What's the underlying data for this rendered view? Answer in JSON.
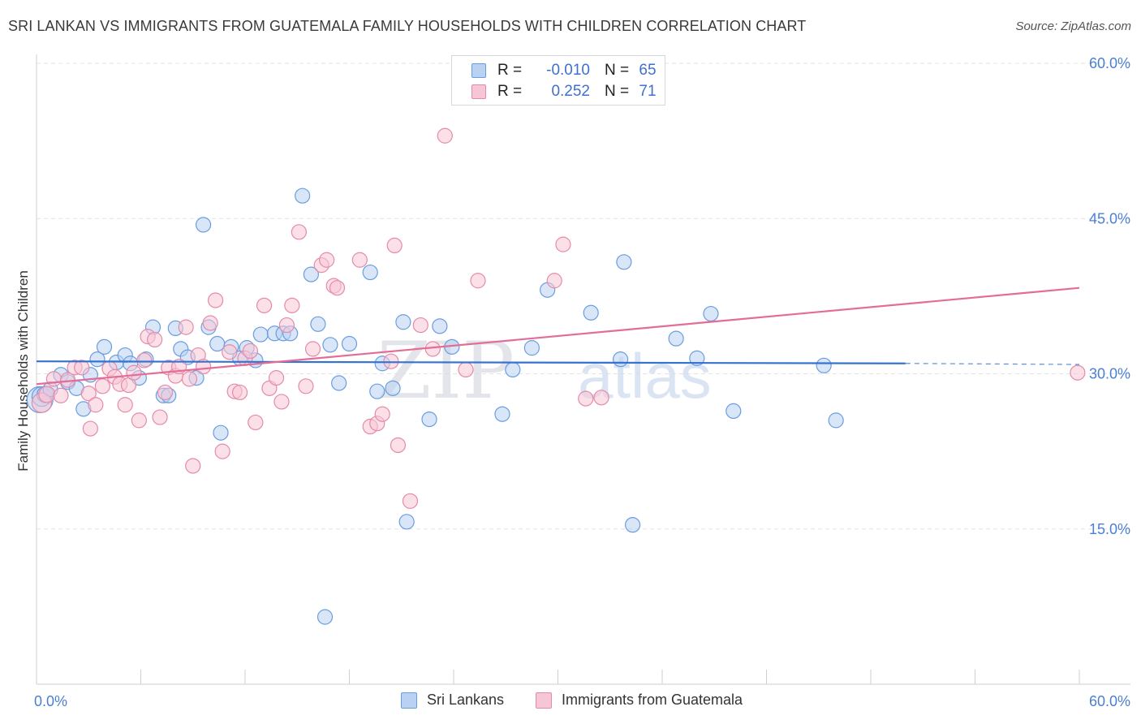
{
  "title": "SRI LANKAN VS IMMIGRANTS FROM GUATEMALA FAMILY HOUSEHOLDS WITH CHILDREN CORRELATION CHART",
  "source": "Source: ZipAtlas.com",
  "watermark": {
    "zip": "ZIP",
    "atlas": "atlas"
  },
  "legend": {
    "rows": [
      {
        "r_label": "R =",
        "r_value": "-0.010",
        "n_label": "N =",
        "n_value": "65"
      },
      {
        "r_label": "R =",
        "r_value": "0.252",
        "n_label": "N =",
        "n_value": "71"
      }
    ]
  },
  "bottom_legend": [
    "Sri Lankans",
    "Immigrants from Guatemala"
  ],
  "colors": {
    "blue_fill": "#b9d2f3",
    "blue_stroke": "#6a9de0",
    "blue_line": "#3673d0",
    "pink_fill": "#f7c6d6",
    "pink_stroke": "#e58aaa",
    "pink_line": "#e36d97",
    "axis_text": "#4a7fd4",
    "grid": "#e3e3e3"
  },
  "chart_data": {
    "type": "scatter",
    "title": "SRI LANKAN VS IMMIGRANTS FROM GUATEMALA FAMILY HOUSEHOLDS WITH CHILDREN CORRELATION CHART",
    "xlabel": "",
    "ylabel": "Family Households with Children",
    "xlim": [
      0,
      60
    ],
    "ylim": [
      0,
      60
    ],
    "x_ticks": [
      {
        "value": 0,
        "label": "0.0%"
      },
      {
        "value": 60,
        "label": "60.0%"
      }
    ],
    "y_ticks": [
      {
        "value": 15,
        "label": "15.0%"
      },
      {
        "value": 30,
        "label": "30.0%"
      },
      {
        "value": 45,
        "label": "45.0%"
      },
      {
        "value": 60,
        "label": "60.0%"
      }
    ],
    "series": [
      {
        "name": "Sri Lankans",
        "color": "blue",
        "trend": {
          "x0": 0,
          "y0": 31.2,
          "x1": 50,
          "y1": 31.0,
          "dashed_to": 60,
          "dashed_y": 30.9
        },
        "points": [
          [
            0.2,
            27.5,
            16
          ],
          [
            0.3,
            27.8,
            12
          ],
          [
            0.5,
            28.0,
            10
          ],
          [
            0.8,
            28.5,
            9
          ],
          [
            1.4,
            29.9,
            9
          ],
          [
            1.8,
            29.2,
            9
          ],
          [
            2.3,
            28.6,
            9
          ],
          [
            2.7,
            26.6,
            9
          ],
          [
            3.1,
            29.9,
            9
          ],
          [
            3.5,
            31.4,
            9
          ],
          [
            3.9,
            32.6,
            9
          ],
          [
            4.6,
            31.1,
            9
          ],
          [
            5.1,
            31.8,
            9
          ],
          [
            5.4,
            31.0,
            9
          ],
          [
            5.9,
            29.6,
            9
          ],
          [
            6.3,
            31.4,
            9
          ],
          [
            6.7,
            34.5,
            9
          ],
          [
            7.3,
            27.9,
            9
          ],
          [
            7.6,
            27.9,
            9
          ],
          [
            8.0,
            34.4,
            9
          ],
          [
            8.3,
            32.4,
            9
          ],
          [
            8.7,
            31.6,
            9
          ],
          [
            9.2,
            29.6,
            9
          ],
          [
            9.6,
            44.4,
            9
          ],
          [
            9.9,
            34.5,
            9
          ],
          [
            10.4,
            32.9,
            9
          ],
          [
            10.6,
            24.3,
            9
          ],
          [
            11.2,
            32.6,
            9
          ],
          [
            11.7,
            31.5,
            9
          ],
          [
            12.1,
            32.5,
            9
          ],
          [
            12.6,
            31.3,
            9
          ],
          [
            12.9,
            33.8,
            9
          ],
          [
            13.7,
            33.9,
            9
          ],
          [
            14.2,
            33.9,
            9
          ],
          [
            14.6,
            33.9,
            9
          ],
          [
            15.3,
            47.2,
            9
          ],
          [
            15.8,
            39.6,
            9
          ],
          [
            16.2,
            34.8,
            9
          ],
          [
            16.6,
            6.5,
            9
          ],
          [
            16.9,
            32.8,
            9
          ],
          [
            17.4,
            29.1,
            9
          ],
          [
            18.0,
            32.9,
            9
          ],
          [
            19.2,
            39.8,
            9
          ],
          [
            19.6,
            28.3,
            9
          ],
          [
            19.9,
            31.0,
            9
          ],
          [
            20.5,
            28.6,
            9
          ],
          [
            21.1,
            35.0,
            9
          ],
          [
            21.3,
            15.7,
            9
          ],
          [
            22.6,
            25.6,
            9
          ],
          [
            23.2,
            34.6,
            9
          ],
          [
            23.9,
            32.6,
            9
          ],
          [
            26.8,
            26.1,
            9
          ],
          [
            27.4,
            30.4,
            9
          ],
          [
            28.5,
            32.5,
            9
          ],
          [
            29.4,
            38.1,
            9
          ],
          [
            31.9,
            35.9,
            9
          ],
          [
            33.6,
            31.4,
            9
          ],
          [
            33.8,
            40.8,
            9
          ],
          [
            34.3,
            15.4,
            9
          ],
          [
            36.8,
            33.4,
            9
          ],
          [
            38.0,
            31.5,
            9
          ],
          [
            38.8,
            35.8,
            9
          ],
          [
            40.1,
            26.4,
            9
          ],
          [
            45.3,
            30.8,
            9
          ],
          [
            46.0,
            25.5,
            9
          ]
        ]
      },
      {
        "name": "Immigrants from Guatemala",
        "color": "pink",
        "trend": {
          "x0": 0,
          "y0": 29.0,
          "x1": 60,
          "y1": 38.3
        },
        "points": [
          [
            0.3,
            27.2,
            12
          ],
          [
            0.6,
            28.0,
            10
          ],
          [
            1.0,
            29.5,
            9
          ],
          [
            1.4,
            27.9,
            9
          ],
          [
            1.8,
            29.4,
            9
          ],
          [
            2.2,
            30.6,
            9
          ],
          [
            2.6,
            30.6,
            9
          ],
          [
            3.0,
            28.1,
            9
          ],
          [
            3.1,
            24.7,
            9
          ],
          [
            3.4,
            27.0,
            9
          ],
          [
            3.8,
            28.8,
            9
          ],
          [
            4.2,
            30.5,
            9
          ],
          [
            4.5,
            29.7,
            9
          ],
          [
            4.8,
            29.0,
            9
          ],
          [
            5.1,
            27.0,
            9
          ],
          [
            5.3,
            28.9,
            9
          ],
          [
            5.6,
            30.1,
            9
          ],
          [
            5.9,
            25.5,
            9
          ],
          [
            6.2,
            31.3,
            9
          ],
          [
            6.4,
            33.6,
            9
          ],
          [
            6.8,
            33.3,
            9
          ],
          [
            7.1,
            25.8,
            9
          ],
          [
            7.4,
            28.2,
            9
          ],
          [
            7.6,
            30.6,
            9
          ],
          [
            8.0,
            29.8,
            9
          ],
          [
            8.2,
            30.7,
            9
          ],
          [
            8.6,
            34.5,
            9
          ],
          [
            8.8,
            29.5,
            9
          ],
          [
            9.0,
            21.1,
            9
          ],
          [
            9.3,
            31.8,
            9
          ],
          [
            9.6,
            30.7,
            9
          ],
          [
            10.0,
            34.9,
            9
          ],
          [
            10.3,
            37.1,
            9
          ],
          [
            10.7,
            22.5,
            9
          ],
          [
            11.1,
            32.1,
            9
          ],
          [
            11.4,
            28.3,
            9
          ],
          [
            11.7,
            28.2,
            9
          ],
          [
            12.0,
            31.5,
            9
          ],
          [
            12.3,
            32.2,
            9
          ],
          [
            12.6,
            25.3,
            9
          ],
          [
            13.1,
            36.6,
            9
          ],
          [
            13.4,
            28.6,
            9
          ],
          [
            13.8,
            29.6,
            9
          ],
          [
            14.1,
            27.3,
            9
          ],
          [
            14.4,
            34.7,
            9
          ],
          [
            14.7,
            36.6,
            9
          ],
          [
            15.1,
            43.7,
            9
          ],
          [
            15.5,
            28.8,
            9
          ],
          [
            15.9,
            32.4,
            9
          ],
          [
            16.4,
            40.5,
            9
          ],
          [
            16.7,
            41.0,
            9
          ],
          [
            17.1,
            38.5,
            9
          ],
          [
            17.3,
            38.3,
            9
          ],
          [
            18.6,
            41.0,
            9
          ],
          [
            19.2,
            24.9,
            9
          ],
          [
            19.6,
            25.2,
            9
          ],
          [
            19.9,
            26.1,
            9
          ],
          [
            20.4,
            31.2,
            9
          ],
          [
            20.6,
            42.4,
            9
          ],
          [
            20.8,
            23.1,
            9
          ],
          [
            21.5,
            17.7,
            9
          ],
          [
            22.1,
            34.7,
            9
          ],
          [
            22.8,
            32.4,
            9
          ],
          [
            23.5,
            53.0,
            9
          ],
          [
            24.7,
            30.4,
            9
          ],
          [
            25.4,
            39.0,
            9
          ],
          [
            29.8,
            39.0,
            9
          ],
          [
            30.3,
            42.5,
            9
          ],
          [
            31.6,
            27.6,
            9
          ],
          [
            32.5,
            27.7,
            9
          ],
          [
            59.9,
            30.1,
            9
          ]
        ]
      }
    ]
  }
}
